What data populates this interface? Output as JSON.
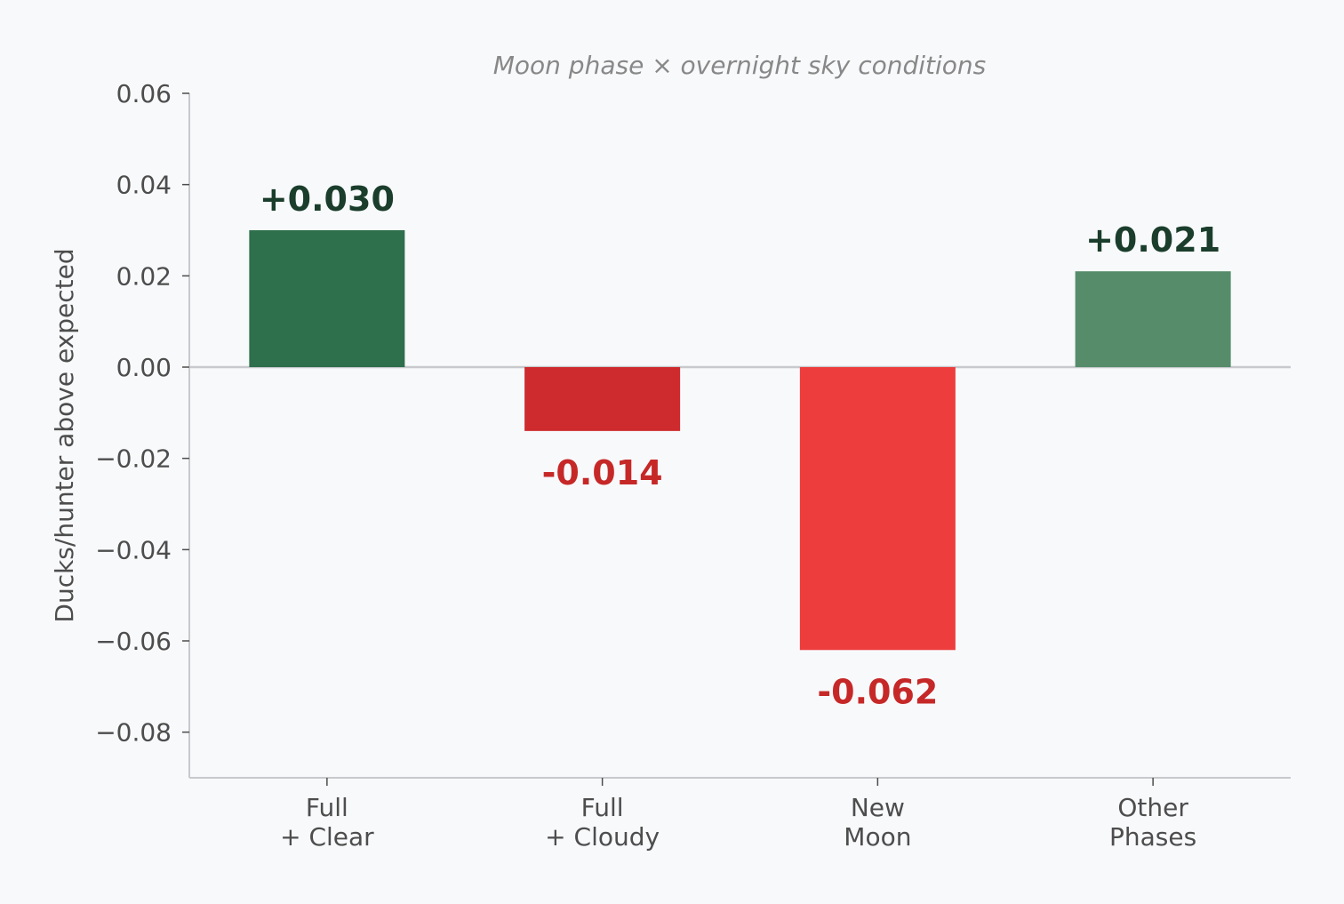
{
  "chart_data": {
    "type": "bar",
    "title": "Moon phase × overnight sky conditions",
    "xlabel": "",
    "ylabel": "Ducks/hunter above expected",
    "categories": [
      [
        "Full",
        "+ Clear"
      ],
      [
        "Full",
        "+ Cloudy"
      ],
      [
        "New",
        "Moon"
      ],
      [
        "Other",
        "Phases"
      ]
    ],
    "values": [
      0.03,
      -0.014,
      -0.062,
      0.021
    ],
    "value_labels": [
      "+0.030",
      "-0.014",
      "-0.062",
      "+0.021"
    ],
    "bar_colors": [
      "#2e6f4c",
      "#cd2b2e",
      "#ed3d3d",
      "#568c6a"
    ],
    "label_colors": [
      "#1a3d2c",
      "#c62828",
      "#c62828",
      "#1a3d2c"
    ],
    "ylim": [
      -0.09,
      0.06
    ],
    "yticks": [
      0.06,
      0.04,
      0.02,
      0.0,
      -0.02,
      -0.04,
      -0.06,
      -0.08
    ],
    "ytick_labels": [
      "0.06",
      "0.04",
      "0.02",
      "0.00",
      "−0.02",
      "−0.04",
      "−0.06",
      "−0.08"
    ],
    "grid": false,
    "zero_line": true
  }
}
